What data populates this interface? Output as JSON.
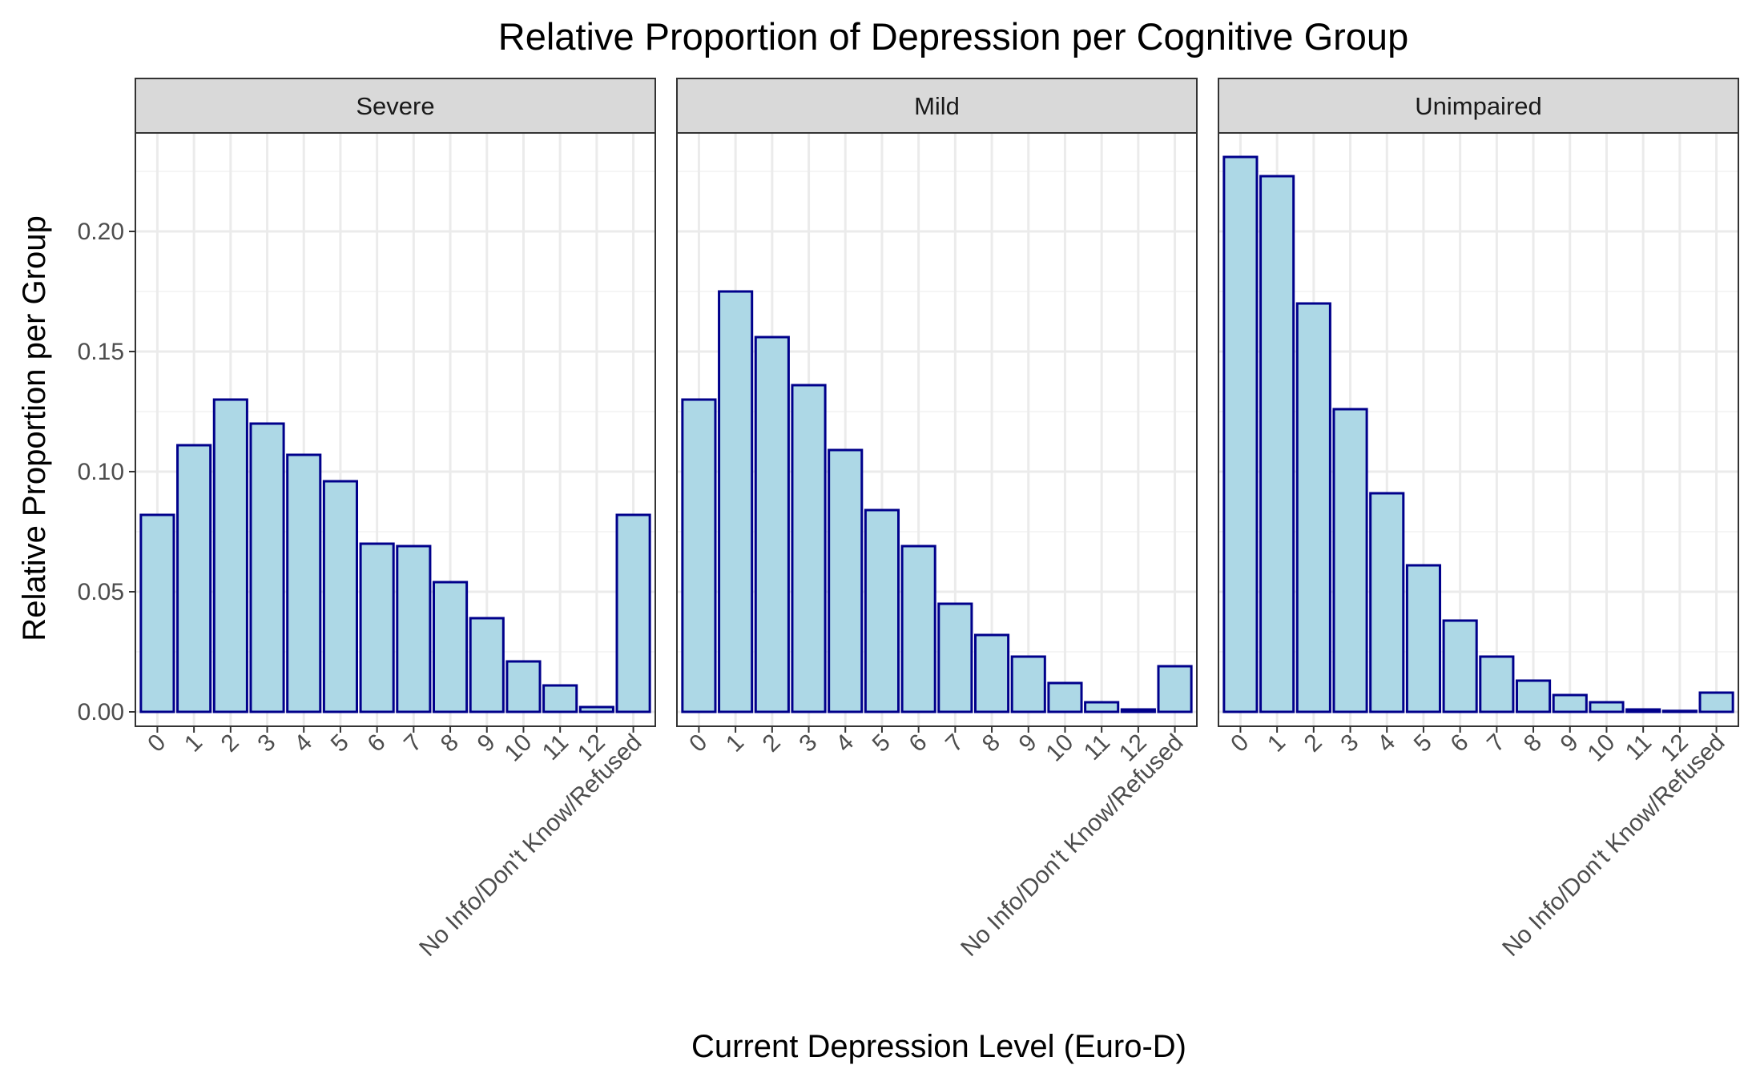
{
  "chart_data": {
    "type": "bar",
    "title": "Relative Proportion of Depression per Cognitive Group",
    "xlabel": "Current Depression Level (Euro-D)",
    "ylabel": "Relative Proportion per Group",
    "ylim": [
      -0.006,
      0.241
    ],
    "yticks": [
      "0.00",
      "0.05",
      "0.10",
      "0.15",
      "0.20"
    ],
    "ytick_values": [
      0,
      0.05,
      0.1,
      0.15,
      0.2
    ],
    "grid": true,
    "categories": [
      "0",
      "1",
      "2",
      "3",
      "4",
      "5",
      "6",
      "7",
      "8",
      "9",
      "10",
      "11",
      "12",
      "No Info/Don't Know/Refused"
    ],
    "bar_fill": "#add8e6",
    "bar_outline": "#00008b",
    "panels": [
      {
        "name": "Severe",
        "values": [
          0.082,
          0.111,
          0.13,
          0.12,
          0.107,
          0.096,
          0.07,
          0.069,
          0.054,
          0.039,
          0.021,
          0.011,
          0.002,
          0.082
        ]
      },
      {
        "name": "Mild",
        "values": [
          0.13,
          0.175,
          0.156,
          0.136,
          0.109,
          0.084,
          0.069,
          0.045,
          0.032,
          0.023,
          0.012,
          0.004,
          0.001,
          0.019
        ]
      },
      {
        "name": "Unimpaired",
        "values": [
          0.231,
          0.223,
          0.17,
          0.126,
          0.091,
          0.061,
          0.038,
          0.023,
          0.013,
          0.007,
          0.004,
          0.001,
          0.0004,
          0.008
        ]
      }
    ]
  }
}
